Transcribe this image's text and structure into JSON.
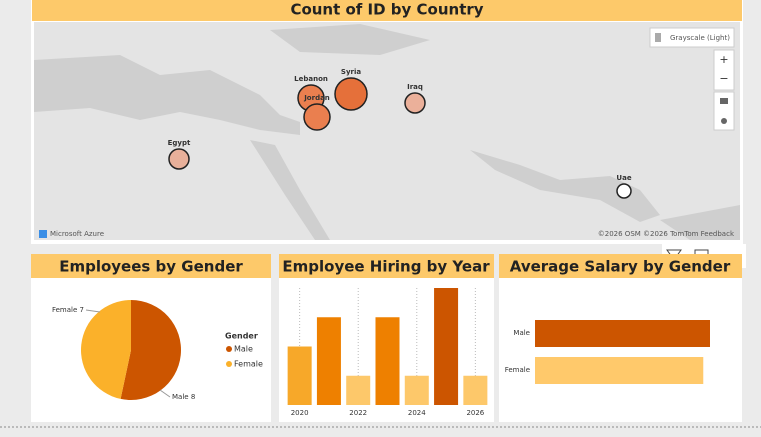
{
  "chart_data": [
    {
      "type": "map",
      "title": "Count of ID by Country",
      "style_label": "Grayscale (Light)",
      "brand": "Microsoft Azure",
      "attribution": "©2026 OSM ©2026 TomTom Feedback",
      "categories": [
        "Lebanon",
        "Jordan",
        "Syria",
        "Iraq",
        "Egypt",
        "Uae"
      ],
      "values": [
        3,
        3,
        4,
        2,
        2,
        1
      ],
      "colors": [
        "#ea7f4f",
        "#ea7f4f",
        "#e5703a",
        "#ebb09a",
        "#e8b09a",
        "#ffffff"
      ]
    },
    {
      "type": "pie",
      "title": "Employees by Gender",
      "legend_title": "Gender",
      "categories": [
        "Male",
        "Female"
      ],
      "values": [
        8,
        7
      ],
      "colors": [
        "#cc5500",
        "#fbb12a"
      ]
    },
    {
      "type": "bar",
      "title": "Employee Hiring by Year",
      "x": [
        2020,
        2021,
        2022,
        2023,
        2024,
        2025,
        2026
      ],
      "values": [
        2,
        3,
        1,
        3,
        1,
        4,
        1
      ],
      "colors": [
        "#f7a829",
        "#ee8000",
        "#fdc86a",
        "#ee8000",
        "#fdc86a",
        "#cc5500",
        "#fdc86a"
      ],
      "xlim": [
        2019.5,
        2026.5
      ],
      "xticks": [
        2020,
        2022,
        2024,
        2026
      ],
      "ylim": [
        0,
        4
      ]
    },
    {
      "type": "hbar",
      "title": "Average Salary by Gender",
      "categories": [
        "Male",
        "Female"
      ],
      "values": [
        10400,
        10000
      ],
      "colors": [
        "#cc5500",
        "#ffc96b"
      ],
      "xlim": [
        0,
        10400
      ]
    }
  ]
}
